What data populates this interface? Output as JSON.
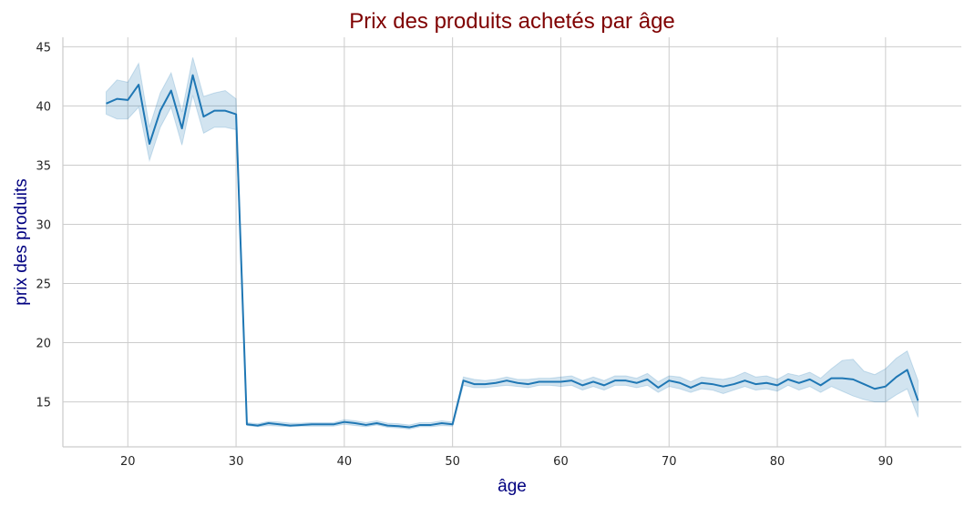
{
  "chart_data": {
    "type": "line",
    "title": "Prix des produits achetés par âge",
    "xlabel": "âge",
    "ylabel": "prix des produits",
    "xlim": [
      14,
      97
    ],
    "ylim": [
      11.2,
      45.8
    ],
    "xticks": [
      20,
      30,
      40,
      50,
      60,
      70,
      80,
      90
    ],
    "yticks": [
      15,
      20,
      25,
      30,
      35,
      40,
      45
    ],
    "grid": true,
    "legend": "none",
    "colors": {
      "line": "#1f77b4",
      "band": "#1f77b4",
      "title": "#7f0000",
      "axis_label": "#000080",
      "grid": "#cccccc"
    },
    "series": [
      {
        "x": [
          18,
          19,
          20,
          21,
          22,
          23,
          24,
          25,
          26,
          27,
          28,
          29,
          30,
          31,
          32,
          33,
          34,
          35,
          36,
          37,
          38,
          39,
          40,
          41,
          42,
          43,
          44,
          45,
          46,
          47,
          48,
          49,
          50,
          51,
          52,
          53,
          54,
          55,
          56,
          57,
          58,
          59,
          60,
          61,
          62,
          63,
          64,
          65,
          66,
          67,
          68,
          69,
          70,
          71,
          72,
          73,
          74,
          75,
          76,
          77,
          78,
          79,
          80,
          81,
          82,
          83,
          84,
          85,
          86,
          87,
          88,
          89,
          90,
          91,
          92,
          93
        ],
        "y": [
          40.2,
          40.6,
          40.5,
          41.8,
          36.8,
          39.6,
          41.3,
          38.1,
          42.6,
          39.1,
          39.6,
          39.6,
          39.3,
          13.1,
          13.0,
          13.2,
          13.1,
          13.0,
          13.05,
          13.1,
          13.1,
          13.1,
          13.3,
          13.2,
          13.05,
          13.2,
          13.0,
          12.95,
          12.85,
          13.05,
          13.05,
          13.2,
          13.1,
          16.8,
          16.5,
          16.5,
          16.6,
          16.8,
          16.6,
          16.5,
          16.7,
          16.7,
          16.7,
          16.8,
          16.4,
          16.7,
          16.4,
          16.8,
          16.8,
          16.6,
          16.9,
          16.2,
          16.8,
          16.6,
          16.2,
          16.6,
          16.5,
          16.3,
          16.5,
          16.8,
          16.5,
          16.6,
          16.4,
          16.9,
          16.6,
          16.9,
          16.4,
          17.0,
          17.0,
          16.9,
          16.5,
          16.1,
          16.3,
          17.1,
          17.7,
          15.1
        ],
        "lower": [
          39.3,
          38.9,
          38.9,
          39.9,
          35.4,
          38.2,
          39.9,
          36.7,
          40.9,
          37.7,
          38.2,
          38.2,
          38.0,
          13.0,
          12.9,
          13.0,
          12.95,
          12.9,
          12.95,
          12.95,
          12.95,
          12.95,
          13.1,
          13.0,
          12.9,
          13.05,
          12.85,
          12.8,
          12.7,
          12.9,
          12.9,
          13.0,
          12.95,
          16.4,
          16.2,
          16.2,
          16.3,
          16.4,
          16.3,
          16.2,
          16.4,
          16.4,
          16.3,
          16.4,
          16.0,
          16.3,
          16.0,
          16.4,
          16.4,
          16.2,
          16.4,
          15.8,
          16.3,
          16.1,
          15.8,
          16.1,
          16.0,
          15.7,
          16.0,
          16.3,
          16.0,
          16.1,
          15.9,
          16.4,
          16.0,
          16.3,
          15.8,
          16.3,
          15.9,
          15.5,
          15.2,
          15.0,
          15.0,
          15.6,
          16.1,
          13.7
        ],
        "upper": [
          41.2,
          42.2,
          42.0,
          43.6,
          38.2,
          41.1,
          42.8,
          39.5,
          44.1,
          40.8,
          41.1,
          41.3,
          40.6,
          13.25,
          13.15,
          13.35,
          13.3,
          13.2,
          13.2,
          13.25,
          13.25,
          13.25,
          13.5,
          13.4,
          13.25,
          13.4,
          13.2,
          13.15,
          13.05,
          13.25,
          13.25,
          13.4,
          13.3,
          17.1,
          16.9,
          16.8,
          16.9,
          17.1,
          16.9,
          16.9,
          17.0,
          17.0,
          17.1,
          17.2,
          16.8,
          17.1,
          16.8,
          17.2,
          17.2,
          17.0,
          17.4,
          16.7,
          17.2,
          17.1,
          16.7,
          17.1,
          17.0,
          16.9,
          17.1,
          17.5,
          17.1,
          17.2,
          16.9,
          17.4,
          17.2,
          17.5,
          17.0,
          17.8,
          18.5,
          18.6,
          17.6,
          17.3,
          17.8,
          18.7,
          19.3,
          16.8
        ]
      }
    ]
  }
}
